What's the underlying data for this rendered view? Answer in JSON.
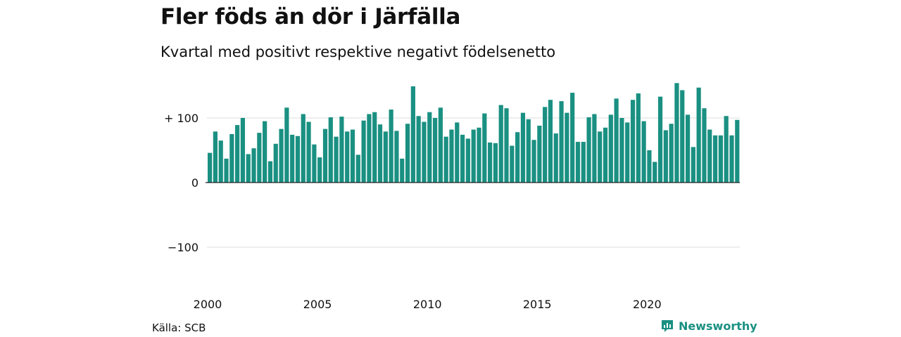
{
  "title": "Fler föds än dör i Järfälla",
  "subtitle": "Kvartal med positivt respektive negativt födelsenetto",
  "source": "Källa: SCB",
  "brand": "Newsworthy",
  "colors": {
    "bar": "#1a9082",
    "grid": "#dddddd",
    "axis": "#222222",
    "brand": "#1a9082"
  },
  "chart_data": {
    "type": "bar",
    "title": "Fler föds än dör i Järfälla",
    "subtitle": "Kvartal med positivt respektive negativt födelsenetto",
    "xlabel": "",
    "ylabel": "",
    "ylim": [
      -150,
      160
    ],
    "y_ticks": [
      {
        "value": 100,
        "label": "+ 100"
      },
      {
        "value": 0,
        "label": "0"
      },
      {
        "value": -100,
        "label": "−100"
      }
    ],
    "x_ticks": [
      "2000",
      "2005",
      "2010",
      "2015",
      "2020"
    ],
    "grid": true,
    "start_quarter": "2000 Q1",
    "values": [
      46,
      79,
      65,
      37,
      75,
      89,
      100,
      44,
      53,
      77,
      95,
      33,
      60,
      83,
      116,
      74,
      72,
      106,
      94,
      59,
      39,
      83,
      101,
      71,
      102,
      79,
      82,
      43,
      96,
      106,
      109,
      90,
      79,
      113,
      80,
      37,
      91,
      149,
      103,
      94,
      109,
      100,
      116,
      71,
      82,
      93,
      74,
      68,
      82,
      85,
      107,
      62,
      61,
      120,
      115,
      57,
      78,
      108,
      98,
      66,
      88,
      117,
      128,
      76,
      126,
      108,
      139,
      63,
      63,
      101,
      106,
      79,
      85,
      105,
      130,
      100,
      93,
      128,
      138,
      95,
      50,
      32,
      133,
      81,
      91,
      154,
      143,
      105,
      55,
      147,
      115,
      82,
      73,
      73,
      103,
      73,
      97
    ]
  }
}
